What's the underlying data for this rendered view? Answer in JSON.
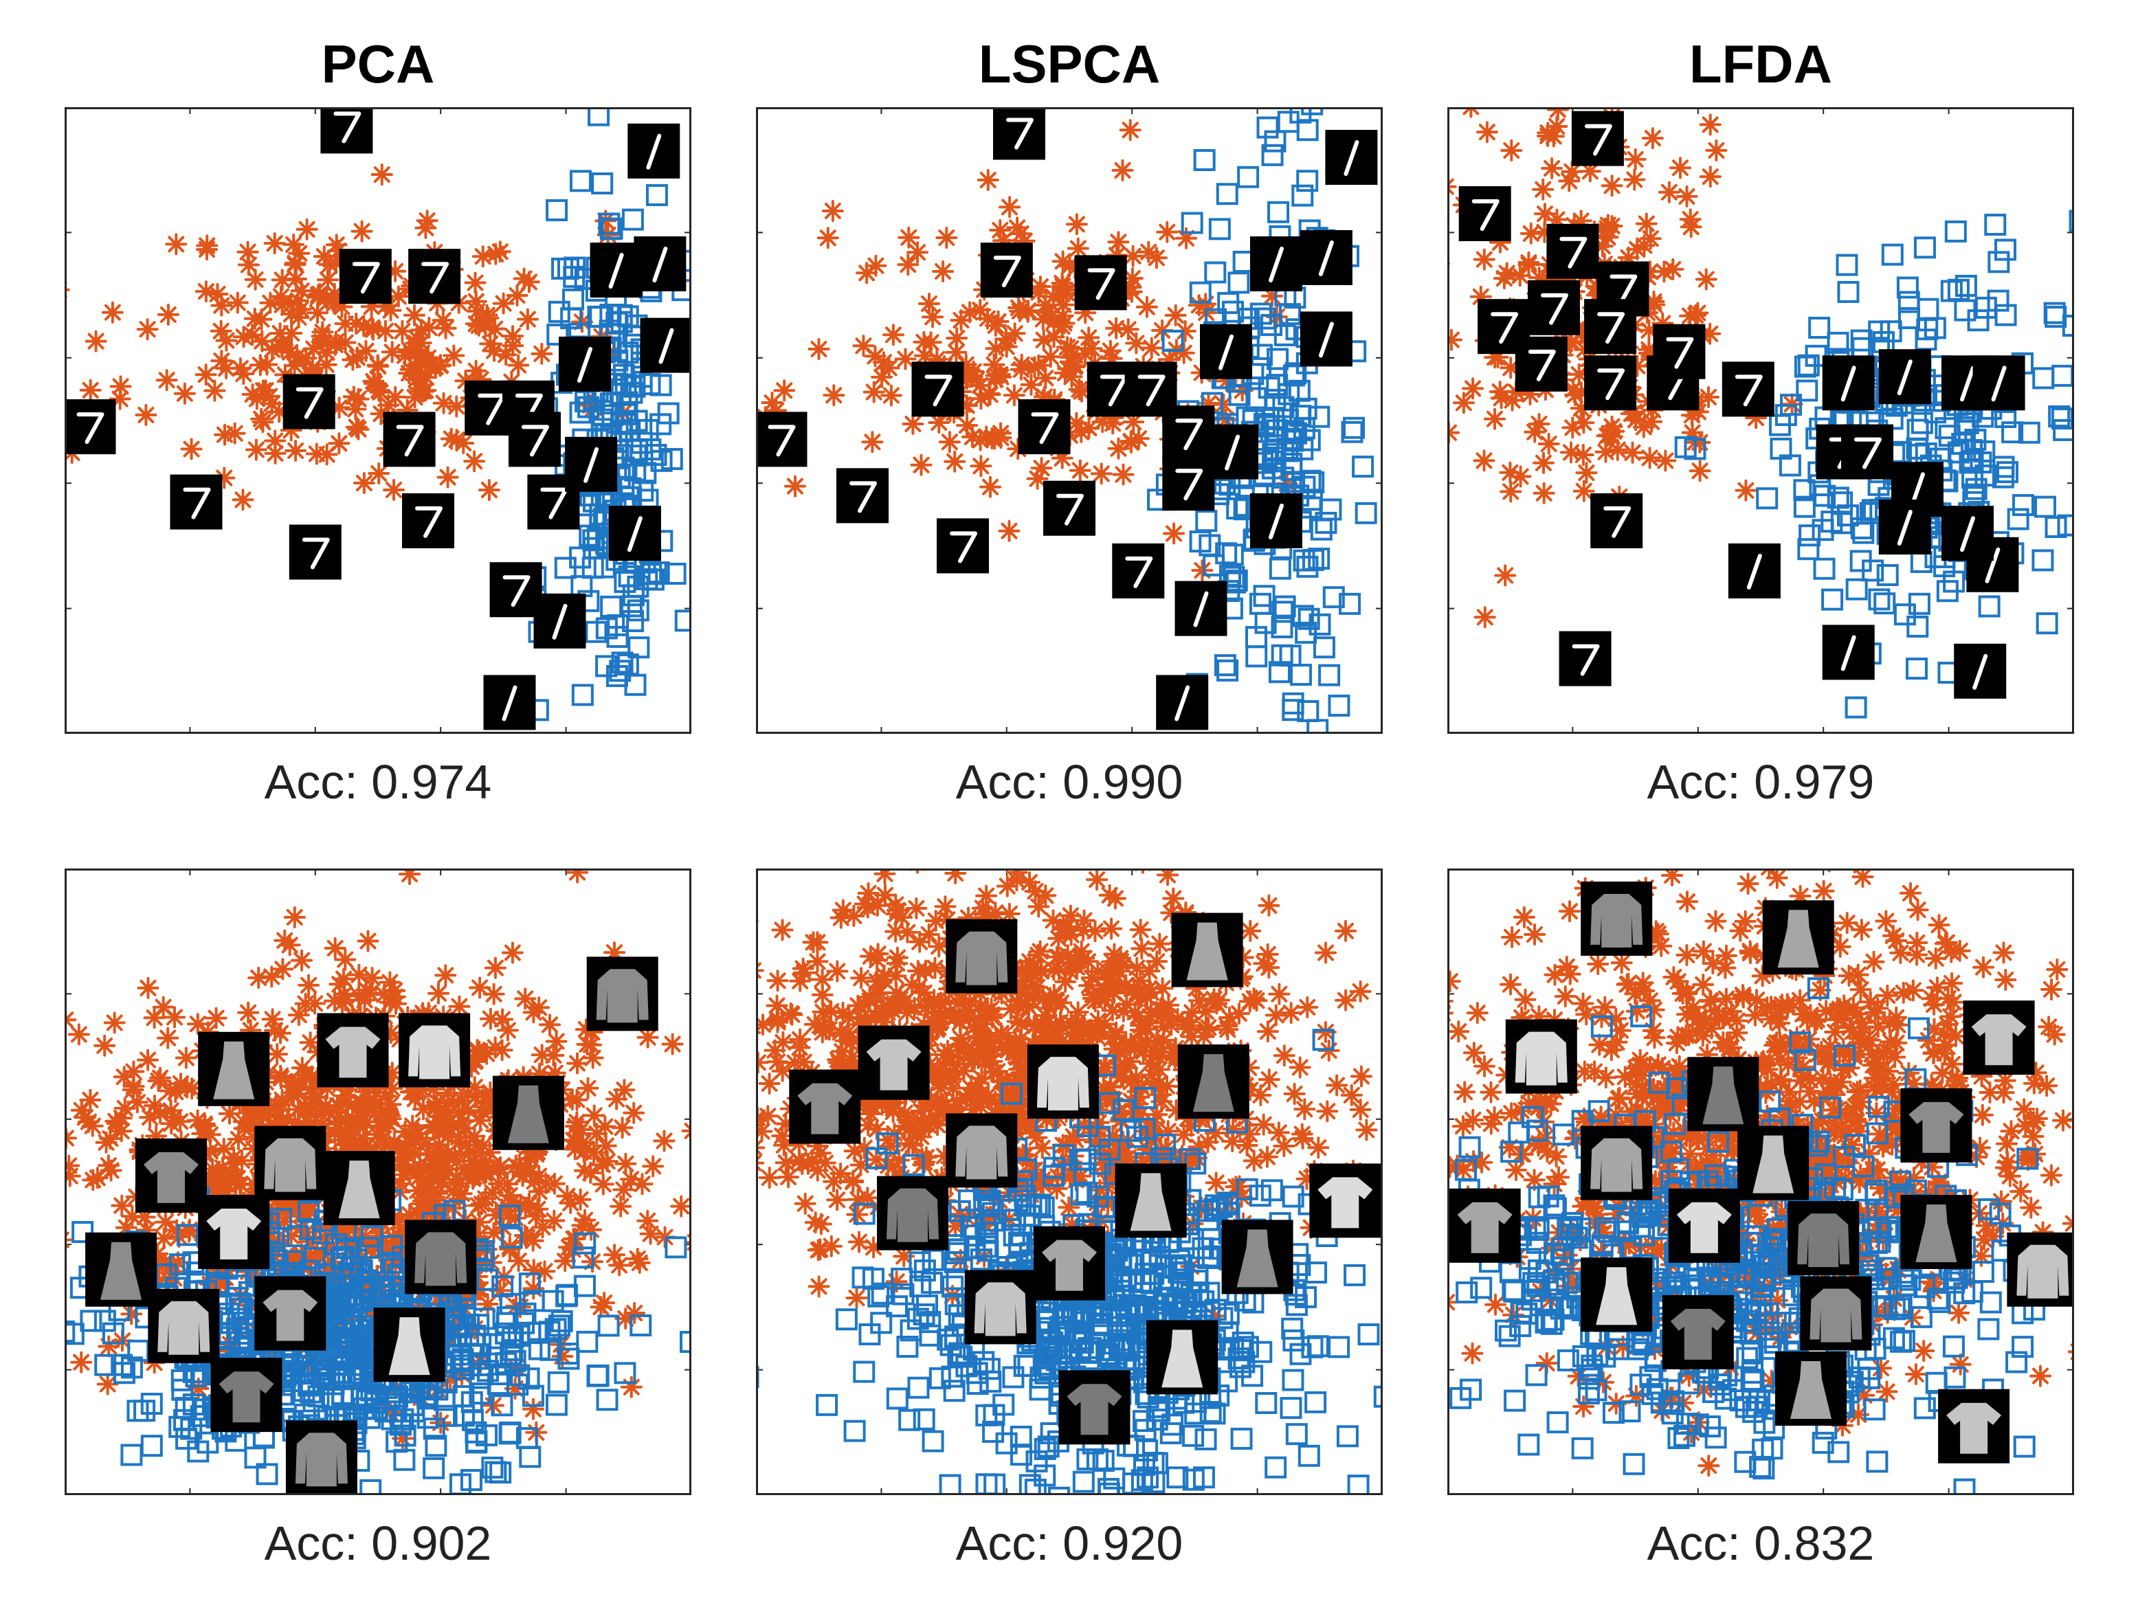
{
  "figure": {
    "titles": [
      "PCA",
      "LSPCA",
      "LFDA"
    ],
    "rows": [
      {
        "dataset": "mnist",
        "accuracies": [
          "Acc: 0.974",
          "Acc: 0.990",
          "Acc: 0.979"
        ]
      },
      {
        "dataset": "fashion",
        "accuracies": [
          "Acc: 0.902",
          "Acc: 0.920",
          "Acc: 0.832"
        ]
      }
    ]
  },
  "colors": {
    "class_a_asterisk": "#e0561a",
    "class_b_square": "#1f77c4",
    "axes": "#262626"
  },
  "chart_data": [
    {
      "type": "scatter",
      "title": "PCA",
      "caption": "Acc: 0.974",
      "dataset": "mnist",
      "xlim": [
        0,
        1
      ],
      "ylim": [
        0,
        1
      ],
      "series": [
        {
          "name": "digit 7",
          "marker": "asterisk",
          "cloud": {
            "cx": 0.47,
            "cy": 0.62,
            "sx": 0.17,
            "sy": 0.1,
            "n": 260,
            "seed": 11
          }
        },
        {
          "name": "digit 1",
          "marker": "square",
          "cloud": {
            "cx": 0.88,
            "cy": 0.45,
            "sx": 0.05,
            "sy": 0.22,
            "n": 210,
            "seed": 12
          }
        }
      ],
      "thumbnails": [
        {
          "kind": "digit7",
          "x": 0.45,
          "y": 0.97
        },
        {
          "kind": "digit7",
          "x": 0.48,
          "y": 0.73
        },
        {
          "kind": "digit7",
          "x": 0.59,
          "y": 0.73
        },
        {
          "kind": "digit7",
          "x": 0.39,
          "y": 0.53
        },
        {
          "kind": "digit7",
          "x": 0.55,
          "y": 0.47
        },
        {
          "kind": "digit7",
          "x": 0.68,
          "y": 0.52
        },
        {
          "kind": "digit7",
          "x": 0.74,
          "y": 0.52
        },
        {
          "kind": "digit7",
          "x": 0.75,
          "y": 0.47
        },
        {
          "kind": "digit7",
          "x": 0.04,
          "y": 0.49
        },
        {
          "kind": "digit7",
          "x": 0.21,
          "y": 0.37
        },
        {
          "kind": "digit7",
          "x": 0.58,
          "y": 0.34
        },
        {
          "kind": "digit7",
          "x": 0.4,
          "y": 0.29
        },
        {
          "kind": "digit7",
          "x": 0.72,
          "y": 0.23
        },
        {
          "kind": "digit7",
          "x": 0.78,
          "y": 0.37
        },
        {
          "kind": "digit1",
          "x": 0.94,
          "y": 0.93
        },
        {
          "kind": "digit1",
          "x": 0.88,
          "y": 0.74
        },
        {
          "kind": "digit1",
          "x": 0.95,
          "y": 0.75
        },
        {
          "kind": "digit1",
          "x": 0.96,
          "y": 0.62
        },
        {
          "kind": "digit1",
          "x": 0.83,
          "y": 0.59
        },
        {
          "kind": "digit1",
          "x": 0.84,
          "y": 0.43
        },
        {
          "kind": "digit1",
          "x": 0.91,
          "y": 0.32
        },
        {
          "kind": "digit1",
          "x": 0.79,
          "y": 0.18
        },
        {
          "kind": "digit1",
          "x": 0.71,
          "y": 0.05
        }
      ]
    },
    {
      "type": "scatter",
      "title": "LSPCA",
      "caption": "Acc: 0.990",
      "dataset": "mnist",
      "xlim": [
        0,
        1
      ],
      "ylim": [
        0,
        1
      ],
      "series": [
        {
          "name": "digit 7",
          "marker": "asterisk",
          "cloud": {
            "cx": 0.47,
            "cy": 0.6,
            "sx": 0.17,
            "sy": 0.11,
            "n": 260,
            "seed": 21
          }
        },
        {
          "name": "digit 1",
          "marker": "square",
          "cloud": {
            "cx": 0.82,
            "cy": 0.45,
            "sx": 0.06,
            "sy": 0.22,
            "n": 210,
            "seed": 22
          }
        }
      ],
      "thumbnails": [
        {
          "kind": "digit7",
          "x": 0.42,
          "y": 0.96
        },
        {
          "kind": "digit7",
          "x": 0.4,
          "y": 0.74
        },
        {
          "kind": "digit7",
          "x": 0.55,
          "y": 0.72
        },
        {
          "kind": "digit7",
          "x": 0.29,
          "y": 0.55
        },
        {
          "kind": "digit7",
          "x": 0.46,
          "y": 0.49
        },
        {
          "kind": "digit7",
          "x": 0.57,
          "y": 0.55
        },
        {
          "kind": "digit7",
          "x": 0.63,
          "y": 0.55
        },
        {
          "kind": "digit7",
          "x": 0.69,
          "y": 0.48
        },
        {
          "kind": "digit7",
          "x": 0.04,
          "y": 0.47
        },
        {
          "kind": "digit7",
          "x": 0.17,
          "y": 0.38
        },
        {
          "kind": "digit7",
          "x": 0.5,
          "y": 0.36
        },
        {
          "kind": "digit7",
          "x": 0.33,
          "y": 0.3
        },
        {
          "kind": "digit7",
          "x": 0.61,
          "y": 0.26
        },
        {
          "kind": "digit7",
          "x": 0.69,
          "y": 0.4
        },
        {
          "kind": "digit1",
          "x": 0.95,
          "y": 0.92
        },
        {
          "kind": "digit1",
          "x": 0.83,
          "y": 0.75
        },
        {
          "kind": "digit1",
          "x": 0.91,
          "y": 0.76
        },
        {
          "kind": "digit1",
          "x": 0.91,
          "y": 0.63
        },
        {
          "kind": "digit1",
          "x": 0.75,
          "y": 0.61
        },
        {
          "kind": "digit1",
          "x": 0.76,
          "y": 0.45
        },
        {
          "kind": "digit1",
          "x": 0.83,
          "y": 0.34
        },
        {
          "kind": "digit1",
          "x": 0.71,
          "y": 0.2
        },
        {
          "kind": "digit1",
          "x": 0.68,
          "y": 0.05
        }
      ]
    },
    {
      "type": "scatter",
      "title": "LFDA",
      "caption": "Acc: 0.979",
      "dataset": "mnist",
      "xlim": [
        0,
        1
      ],
      "ylim": [
        0,
        1
      ],
      "series": [
        {
          "name": "digit 7",
          "marker": "asterisk",
          "cloud": {
            "cx": 0.22,
            "cy": 0.65,
            "sx": 0.12,
            "sy": 0.16,
            "n": 240,
            "seed": 31
          }
        },
        {
          "name": "digit 1",
          "marker": "square",
          "cloud": {
            "cx": 0.74,
            "cy": 0.46,
            "sx": 0.13,
            "sy": 0.15,
            "n": 240,
            "seed": 32
          }
        }
      ],
      "thumbnails": [
        {
          "kind": "digit7",
          "x": 0.24,
          "y": 0.95
        },
        {
          "kind": "digit7",
          "x": 0.06,
          "y": 0.83
        },
        {
          "kind": "digit7",
          "x": 0.2,
          "y": 0.77
        },
        {
          "kind": "digit7",
          "x": 0.28,
          "y": 0.71
        },
        {
          "kind": "digit7",
          "x": 0.09,
          "y": 0.65
        },
        {
          "kind": "digit7",
          "x": 0.17,
          "y": 0.68
        },
        {
          "kind": "digit7",
          "x": 0.26,
          "y": 0.65
        },
        {
          "kind": "digit7",
          "x": 0.15,
          "y": 0.59
        },
        {
          "kind": "digit7",
          "x": 0.26,
          "y": 0.56
        },
        {
          "kind": "digit7",
          "x": 0.36,
          "y": 0.56
        },
        {
          "kind": "digit7",
          "x": 0.37,
          "y": 0.61
        },
        {
          "kind": "digit7",
          "x": 0.48,
          "y": 0.55
        },
        {
          "kind": "digit7",
          "x": 0.27,
          "y": 0.34
        },
        {
          "kind": "digit7",
          "x": 0.22,
          "y": 0.12
        },
        {
          "kind": "digit7",
          "x": 0.63,
          "y": 0.45
        },
        {
          "kind": "digit7",
          "x": 0.67,
          "y": 0.45
        },
        {
          "kind": "digit1",
          "x": 0.64,
          "y": 0.56
        },
        {
          "kind": "digit1",
          "x": 0.73,
          "y": 0.57
        },
        {
          "kind": "digit1",
          "x": 0.83,
          "y": 0.56
        },
        {
          "kind": "digit1",
          "x": 0.88,
          "y": 0.56
        },
        {
          "kind": "digit1",
          "x": 0.75,
          "y": 0.39
        },
        {
          "kind": "digit1",
          "x": 0.73,
          "y": 0.33
        },
        {
          "kind": "digit1",
          "x": 0.87,
          "y": 0.27
        },
        {
          "kind": "digit1",
          "x": 0.83,
          "y": 0.32
        },
        {
          "kind": "digit1",
          "x": 0.49,
          "y": 0.26
        },
        {
          "kind": "digit1",
          "x": 0.64,
          "y": 0.13
        },
        {
          "kind": "digit1",
          "x": 0.85,
          "y": 0.1
        }
      ]
    },
    {
      "type": "scatter",
      "title": "",
      "caption": "Acc: 0.902",
      "dataset": "fashion",
      "xlim": [
        0,
        1
      ],
      "ylim": [
        0,
        1
      ],
      "series": [
        {
          "name": "tops",
          "marker": "asterisk",
          "cloud": {
            "cx": 0.48,
            "cy": 0.52,
            "sx": 0.21,
            "sy": 0.15,
            "n": 1100,
            "seed": 41
          }
        },
        {
          "name": "dresses",
          "marker": "square",
          "cloud": {
            "cx": 0.45,
            "cy": 0.24,
            "sx": 0.18,
            "sy": 0.1,
            "n": 650,
            "seed": 42
          }
        }
      ],
      "thumbnails": [
        {
          "kind": "fashion",
          "x": 0.89,
          "y": 0.8
        },
        {
          "kind": "fashion",
          "x": 0.27,
          "y": 0.68
        },
        {
          "kind": "fashion",
          "x": 0.46,
          "y": 0.71
        },
        {
          "kind": "fashion",
          "x": 0.59,
          "y": 0.71
        },
        {
          "kind": "fashion",
          "x": 0.74,
          "y": 0.61
        },
        {
          "kind": "fashion",
          "x": 0.17,
          "y": 0.51
        },
        {
          "kind": "fashion",
          "x": 0.36,
          "y": 0.53
        },
        {
          "kind": "fashion",
          "x": 0.47,
          "y": 0.49
        },
        {
          "kind": "fashion",
          "x": 0.27,
          "y": 0.42
        },
        {
          "kind": "fashion",
          "x": 0.6,
          "y": 0.38
        },
        {
          "kind": "fashion",
          "x": 0.09,
          "y": 0.36
        },
        {
          "kind": "fashion",
          "x": 0.36,
          "y": 0.29
        },
        {
          "kind": "fashion",
          "x": 0.19,
          "y": 0.27
        },
        {
          "kind": "fashion",
          "x": 0.55,
          "y": 0.24
        },
        {
          "kind": "fashion",
          "x": 0.29,
          "y": 0.16
        },
        {
          "kind": "fashion",
          "x": 0.41,
          "y": 0.06
        }
      ]
    },
    {
      "type": "scatter",
      "title": "",
      "caption": "Acc: 0.920",
      "dataset": "fashion",
      "xlim": [
        0,
        1
      ],
      "ylim": [
        0,
        1
      ],
      "series": [
        {
          "name": "tops",
          "marker": "asterisk",
          "cloud": {
            "cx": 0.42,
            "cy": 0.68,
            "sx": 0.23,
            "sy": 0.14,
            "n": 1100,
            "seed": 51
          }
        },
        {
          "name": "dresses",
          "marker": "square",
          "cloud": {
            "cx": 0.55,
            "cy": 0.3,
            "sx": 0.16,
            "sy": 0.14,
            "n": 650,
            "seed": 52
          }
        }
      ],
      "thumbnails": [
        {
          "kind": "fashion",
          "x": 0.36,
          "y": 0.86
        },
        {
          "kind": "fashion",
          "x": 0.72,
          "y": 0.87
        },
        {
          "kind": "fashion",
          "x": 0.22,
          "y": 0.69
        },
        {
          "kind": "fashion",
          "x": 0.49,
          "y": 0.66
        },
        {
          "kind": "fashion",
          "x": 0.73,
          "y": 0.66
        },
        {
          "kind": "fashion",
          "x": 0.11,
          "y": 0.62
        },
        {
          "kind": "fashion",
          "x": 0.36,
          "y": 0.55
        },
        {
          "kind": "fashion",
          "x": 0.63,
          "y": 0.47
        },
        {
          "kind": "fashion",
          "x": 0.94,
          "y": 0.47
        },
        {
          "kind": "fashion",
          "x": 0.25,
          "y": 0.45
        },
        {
          "kind": "fashion",
          "x": 0.8,
          "y": 0.38
        },
        {
          "kind": "fashion",
          "x": 0.5,
          "y": 0.37
        },
        {
          "kind": "fashion",
          "x": 0.39,
          "y": 0.3
        },
        {
          "kind": "fashion",
          "x": 0.68,
          "y": 0.22
        },
        {
          "kind": "fashion",
          "x": 0.54,
          "y": 0.14
        }
      ]
    },
    {
      "type": "scatter",
      "title": "",
      "caption": "Acc: 0.832",
      "dataset": "fashion",
      "xlim": [
        0,
        1
      ],
      "ylim": [
        0,
        1
      ],
      "series": [
        {
          "name": "tops",
          "marker": "asterisk",
          "cloud": {
            "cx": 0.5,
            "cy": 0.58,
            "sx": 0.23,
            "sy": 0.18,
            "n": 1050,
            "seed": 61
          }
        },
        {
          "name": "dresses",
          "marker": "square",
          "cloud": {
            "cx": 0.45,
            "cy": 0.35,
            "sx": 0.21,
            "sy": 0.13,
            "n": 600,
            "seed": 62
          }
        }
      ],
      "thumbnails": [
        {
          "kind": "fashion",
          "x": 0.27,
          "y": 0.92
        },
        {
          "kind": "fashion",
          "x": 0.56,
          "y": 0.89
        },
        {
          "kind": "fashion",
          "x": 0.88,
          "y": 0.73
        },
        {
          "kind": "fashion",
          "x": 0.15,
          "y": 0.7
        },
        {
          "kind": "fashion",
          "x": 0.44,
          "y": 0.64
        },
        {
          "kind": "fashion",
          "x": 0.78,
          "y": 0.59
        },
        {
          "kind": "fashion",
          "x": 0.27,
          "y": 0.53
        },
        {
          "kind": "fashion",
          "x": 0.52,
          "y": 0.53
        },
        {
          "kind": "fashion",
          "x": 0.41,
          "y": 0.43
        },
        {
          "kind": "fashion",
          "x": 0.6,
          "y": 0.41
        },
        {
          "kind": "fashion",
          "x": 0.78,
          "y": 0.42
        },
        {
          "kind": "fashion",
          "x": 0.06,
          "y": 0.43
        },
        {
          "kind": "fashion",
          "x": 0.95,
          "y": 0.36
        },
        {
          "kind": "fashion",
          "x": 0.27,
          "y": 0.32
        },
        {
          "kind": "fashion",
          "x": 0.4,
          "y": 0.26
        },
        {
          "kind": "fashion",
          "x": 0.62,
          "y": 0.29
        },
        {
          "kind": "fashion",
          "x": 0.58,
          "y": 0.17
        },
        {
          "kind": "fashion",
          "x": 0.84,
          "y": 0.11
        }
      ]
    }
  ]
}
